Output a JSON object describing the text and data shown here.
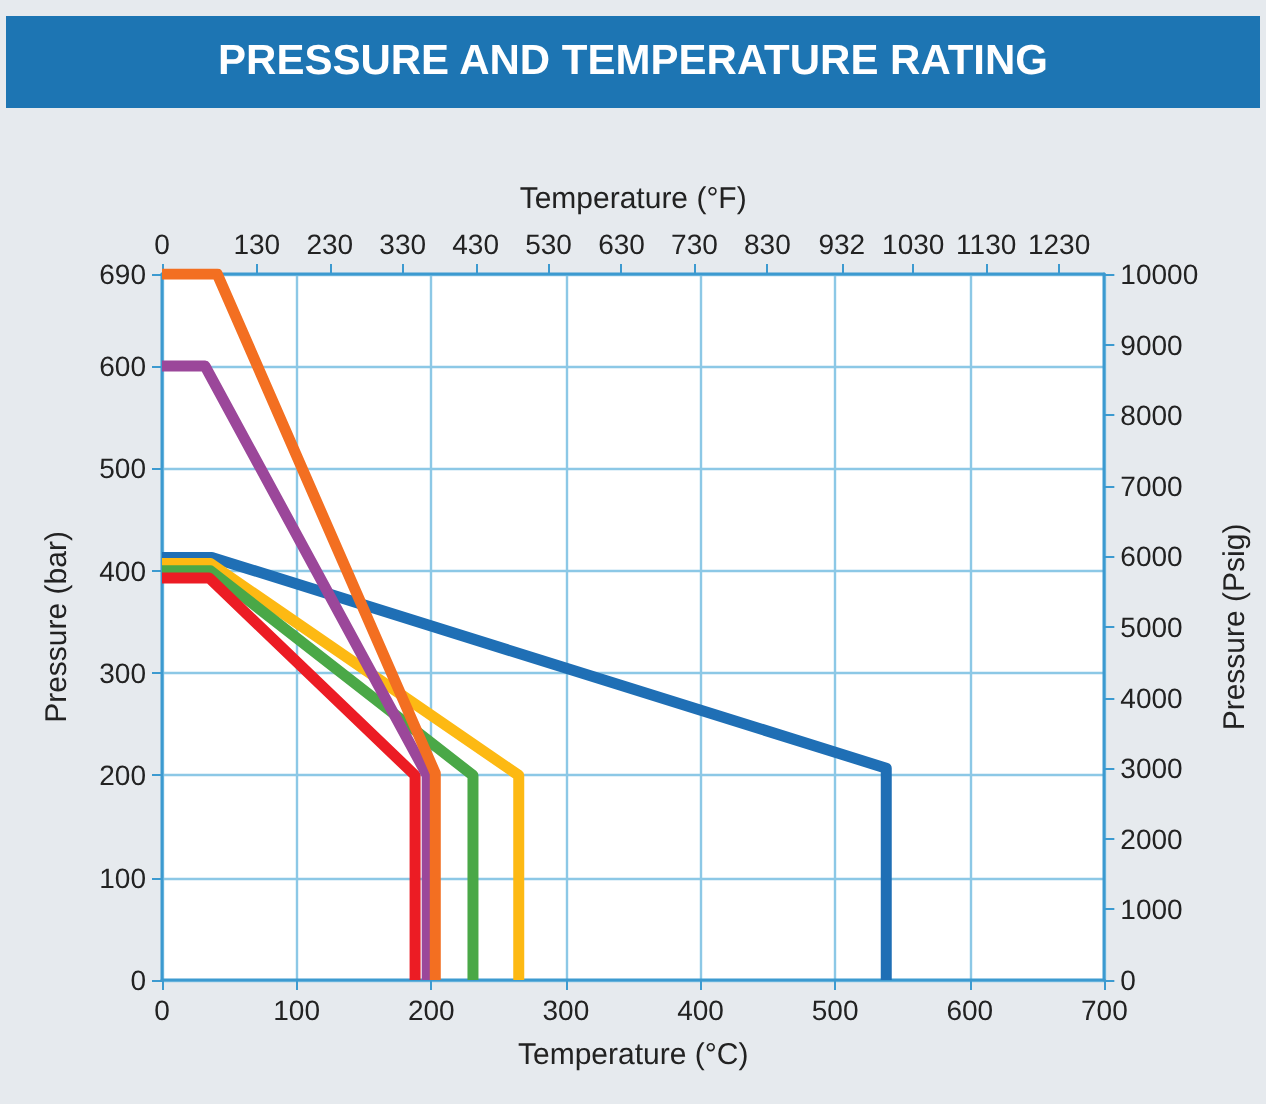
{
  "chart_data": {
    "type": "line",
    "title": "PRESSURE AND TEMPERATURE RATING",
    "xlabel": "Temperature (°C)",
    "ylabel": "Pressure (bar)",
    "x2label": "Temperature (°F)",
    "y2label": "Pressure (Psig)",
    "xlim": [
      0,
      700
    ],
    "xticks": [
      0,
      100,
      200,
      300,
      400,
      500,
      600,
      700
    ],
    "ylim": [
      0,
      690
    ],
    "yticks": [
      0,
      100,
      200,
      300,
      400,
      500,
      600,
      690
    ],
    "x2lim": [
      0,
      1292
    ],
    "x2ticks": [
      0,
      130,
      230,
      330,
      430,
      530,
      630,
      730,
      830,
      932,
      1030,
      1130,
      1230
    ],
    "y2lim": [
      0,
      10000
    ],
    "y2ticks": [
      0,
      1000,
      2000,
      3000,
      4000,
      5000,
      6000,
      7000,
      8000,
      9000,
      10000
    ],
    "grid": true,
    "marker": "none",
    "line_style": "solid",
    "series": [
      {
        "color": "#1f6fb5",
        "x": [
          0,
          37,
          538,
          538
        ],
        "values": [
          413,
          413,
          207,
          0
        ]
      },
      {
        "color": "#fdb913",
        "x": [
          0,
          36,
          265,
          265
        ],
        "values": [
          407,
          407,
          200,
          0
        ]
      },
      {
        "color": "#4aa847",
        "x": [
          0,
          36,
          231,
          231
        ],
        "values": [
          400,
          400,
          200,
          0
        ]
      },
      {
        "color": "#ec1c24",
        "x": [
          0,
          35,
          188,
          188
        ],
        "values": [
          393,
          393,
          200,
          0
        ]
      },
      {
        "color": "#9b479a",
        "x": [
          0,
          32,
          197,
          197
        ],
        "values": [
          600,
          600,
          200,
          0
        ]
      },
      {
        "color": "#f36f21",
        "x": [
          0,
          41,
          203,
          203
        ],
        "values": [
          690,
          690,
          202,
          0
        ]
      }
    ]
  }
}
